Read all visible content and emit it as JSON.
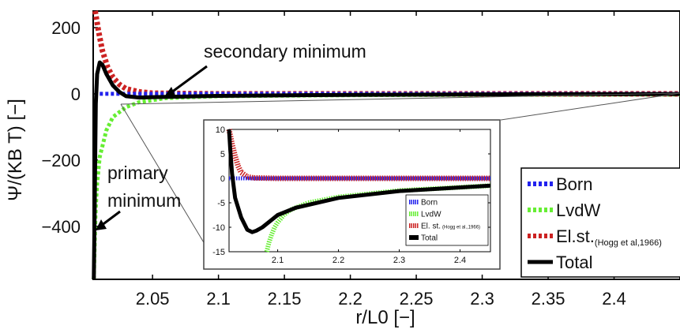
{
  "chart_data": [
    {
      "type": "line",
      "title": "",
      "xlabel": "r/L0 [−]",
      "ylabel": "Ψ/(KB T) [−]",
      "xlim": [
        2.005,
        2.45
      ],
      "ylim": [
        -560,
        250
      ],
      "x_ticks": [
        2.05,
        2.1,
        2.15,
        2.2,
        2.25,
        2.3,
        2.35,
        2.4
      ],
      "x_tick_labels": [
        "2.05",
        "2.1",
        "2.15",
        "2.2",
        "2.25",
        "2.3",
        "2.35",
        "2.4"
      ],
      "y_ticks": [
        200,
        0,
        -200,
        -400
      ],
      "y_tick_labels": [
        "200",
        "0",
        "−200",
        "−400"
      ],
      "legend_position": "bottom-right",
      "series": [
        {
          "name": "Born",
          "color": "#2222ee",
          "style": "dotted",
          "x": [
            2.01,
            2.015,
            2.02,
            2.025,
            2.03,
            2.05,
            2.1,
            2.2,
            2.3,
            2.45
          ],
          "y": [
            0,
            0,
            0,
            0,
            0,
            0,
            0,
            0,
            0,
            0
          ]
        },
        {
          "name": "LvdW",
          "color": "#66ee33",
          "style": "dotted",
          "x": [
            2.0055,
            2.006,
            2.0065,
            2.007,
            2.008,
            2.01,
            2.015,
            2.02,
            2.03,
            2.04,
            2.06,
            2.1,
            2.2,
            2.3,
            2.45
          ],
          "y": [
            -560,
            -470,
            -400,
            -340,
            -270,
            -190,
            -110,
            -70,
            -40,
            -25,
            -13,
            -7,
            -4,
            -3,
            -2
          ]
        },
        {
          "name": "El.st.",
          "name_suffix": "(Hogg et al,1966)",
          "color": "#cc2222",
          "style": "dotted",
          "x": [
            2.0065,
            2.009,
            2.012,
            2.016,
            2.02,
            2.025,
            2.03,
            2.04,
            2.05,
            2.1,
            2.2,
            2.3,
            2.45
          ],
          "y": [
            250,
            190,
            130,
            80,
            50,
            28,
            15,
            6,
            2,
            0,
            0,
            0,
            0
          ]
        },
        {
          "name": "Total",
          "color": "#000000",
          "style": "solid",
          "x": [
            2.0055,
            2.006,
            2.0065,
            2.007,
            2.008,
            2.01,
            2.012,
            2.015,
            2.02,
            2.025,
            2.03,
            2.04,
            2.05,
            2.1,
            2.2,
            2.3,
            2.45
          ],
          "y": [
            -560,
            -380,
            -200,
            -30,
            60,
            95,
            88,
            60,
            25,
            5,
            -7,
            -11,
            -10,
            -6,
            -3,
            -1.5,
            -0.5
          ]
        }
      ]
    },
    {
      "type": "line",
      "title": "",
      "xlim": [
        2.02,
        2.45
      ],
      "ylim": [
        -15,
        10
      ],
      "x_ticks": [
        2.1,
        2.2,
        2.3,
        2.4
      ],
      "x_tick_labels": [
        "2.1",
        "2.2",
        "2.3",
        "2.4"
      ],
      "y_ticks": [
        10,
        5,
        0,
        -5,
        -10,
        -15
      ],
      "y_tick_labels": [
        "10",
        "5",
        "0",
        "-5",
        "-10",
        "-15"
      ],
      "legend_position": "bottom-right",
      "series": [
        {
          "name": "Born",
          "color": "#2222ee",
          "x": [
            2.02,
            2.05,
            2.1,
            2.2,
            2.3,
            2.45
          ],
          "y": [
            0,
            0,
            0,
            0,
            0,
            0
          ]
        },
        {
          "name": "LvdW",
          "color": "#66ee33",
          "x": [
            2.082,
            2.086,
            2.09,
            2.095,
            2.1,
            2.11,
            2.12,
            2.15,
            2.2,
            2.3,
            2.45
          ],
          "y": [
            -15,
            -13,
            -11.5,
            -10,
            -9,
            -7.5,
            -6.5,
            -5,
            -3.8,
            -2.5,
            -1.5
          ]
        },
        {
          "name": "El. st.",
          "name_suffix": "(Hogg et al.,1966)",
          "color": "#cc2222",
          "x": [
            2.02,
            2.025,
            2.03,
            2.035,
            2.04,
            2.05,
            2.06,
            2.1,
            2.2,
            2.3,
            2.45
          ],
          "y": [
            10,
            7,
            4.5,
            2.5,
            1.2,
            0.3,
            0.1,
            0,
            0,
            0,
            0
          ]
        },
        {
          "name": "Total",
          "color": "#000000",
          "x": [
            2.02,
            2.022,
            2.025,
            2.03,
            2.04,
            2.05,
            2.058,
            2.065,
            2.075,
            2.09,
            2.1,
            2.13,
            2.2,
            2.3,
            2.45
          ],
          "y": [
            10,
            6,
            1,
            -4,
            -8,
            -10.5,
            -11,
            -10.7,
            -10,
            -8.5,
            -7.5,
            -6,
            -4,
            -2.6,
            -1.5
          ]
        }
      ]
    }
  ],
  "annotations": {
    "secondary": "secondary minimum",
    "primary_line1": "primary",
    "primary_line2": "minimum"
  }
}
